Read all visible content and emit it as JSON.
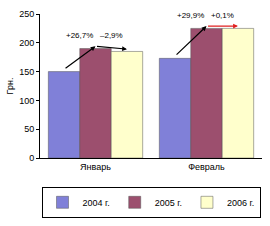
{
  "chart_data": {
    "type": "bar",
    "y_label": "Грн.",
    "categories": [
      "Январь",
      "Февраль"
    ],
    "series": [
      {
        "name": "2004 г.",
        "color": "#8080d8",
        "values": [
          150,
          173
        ]
      },
      {
        "name": "2005 г.",
        "color": "#9c4f6e",
        "values": [
          190,
          225
        ]
      },
      {
        "name": "2006 г.",
        "color": "#ffffcc",
        "values": [
          185,
          225
        ]
      }
    ],
    "ylim": [
      0,
      250
    ],
    "yticks": [
      0,
      50,
      100,
      150,
      200,
      250
    ],
    "grid": false,
    "legend": "bottom",
    "annotations": [
      {
        "text": "+26,7%",
        "category": "Январь",
        "from": "2004 г.",
        "to": "2005 г.",
        "color": "#000000"
      },
      {
        "text": "–2,9%",
        "category": "Январь",
        "from": "2005 г.",
        "to": "2006 г.",
        "color": "#000000"
      },
      {
        "text": "+29,9%",
        "category": "Февраль",
        "from": "2004 г.",
        "to": "2005 г.",
        "color": "#000000"
      },
      {
        "text": "+0,1%",
        "category": "Февраль",
        "from": "2005 г.",
        "to": "2006 г.",
        "color": "#e02020"
      }
    ]
  }
}
